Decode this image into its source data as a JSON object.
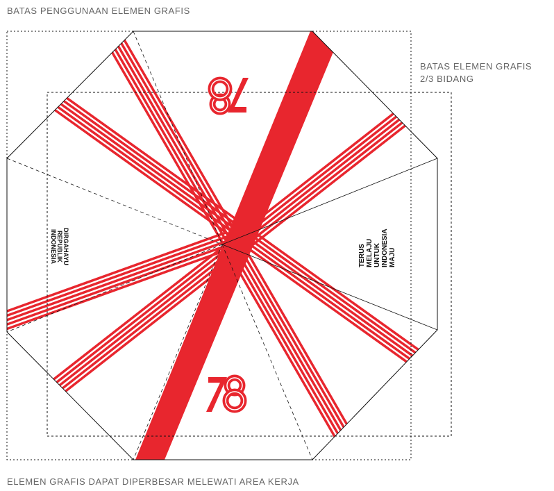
{
  "header": {
    "title": "BATAS PENGGUNAAN ELEMEN GRAFIS"
  },
  "inner_boundary": {
    "label_line1": "BATAS ELEMEN GRAFIS",
    "label_line2": "2/3 BIDANG"
  },
  "left_text": [
    "DIRGAHAYU",
    "REPUBLIK",
    "INDONESIA"
  ],
  "right_text": [
    "TERUS",
    "MELAJU",
    "UNTUK",
    "INDONESIA",
    "MAJU"
  ],
  "footer": {
    "note": "ELEMEN GRAFIS DAPAT DIPERBESAR MELEWATI AREA KERJA"
  }
}
